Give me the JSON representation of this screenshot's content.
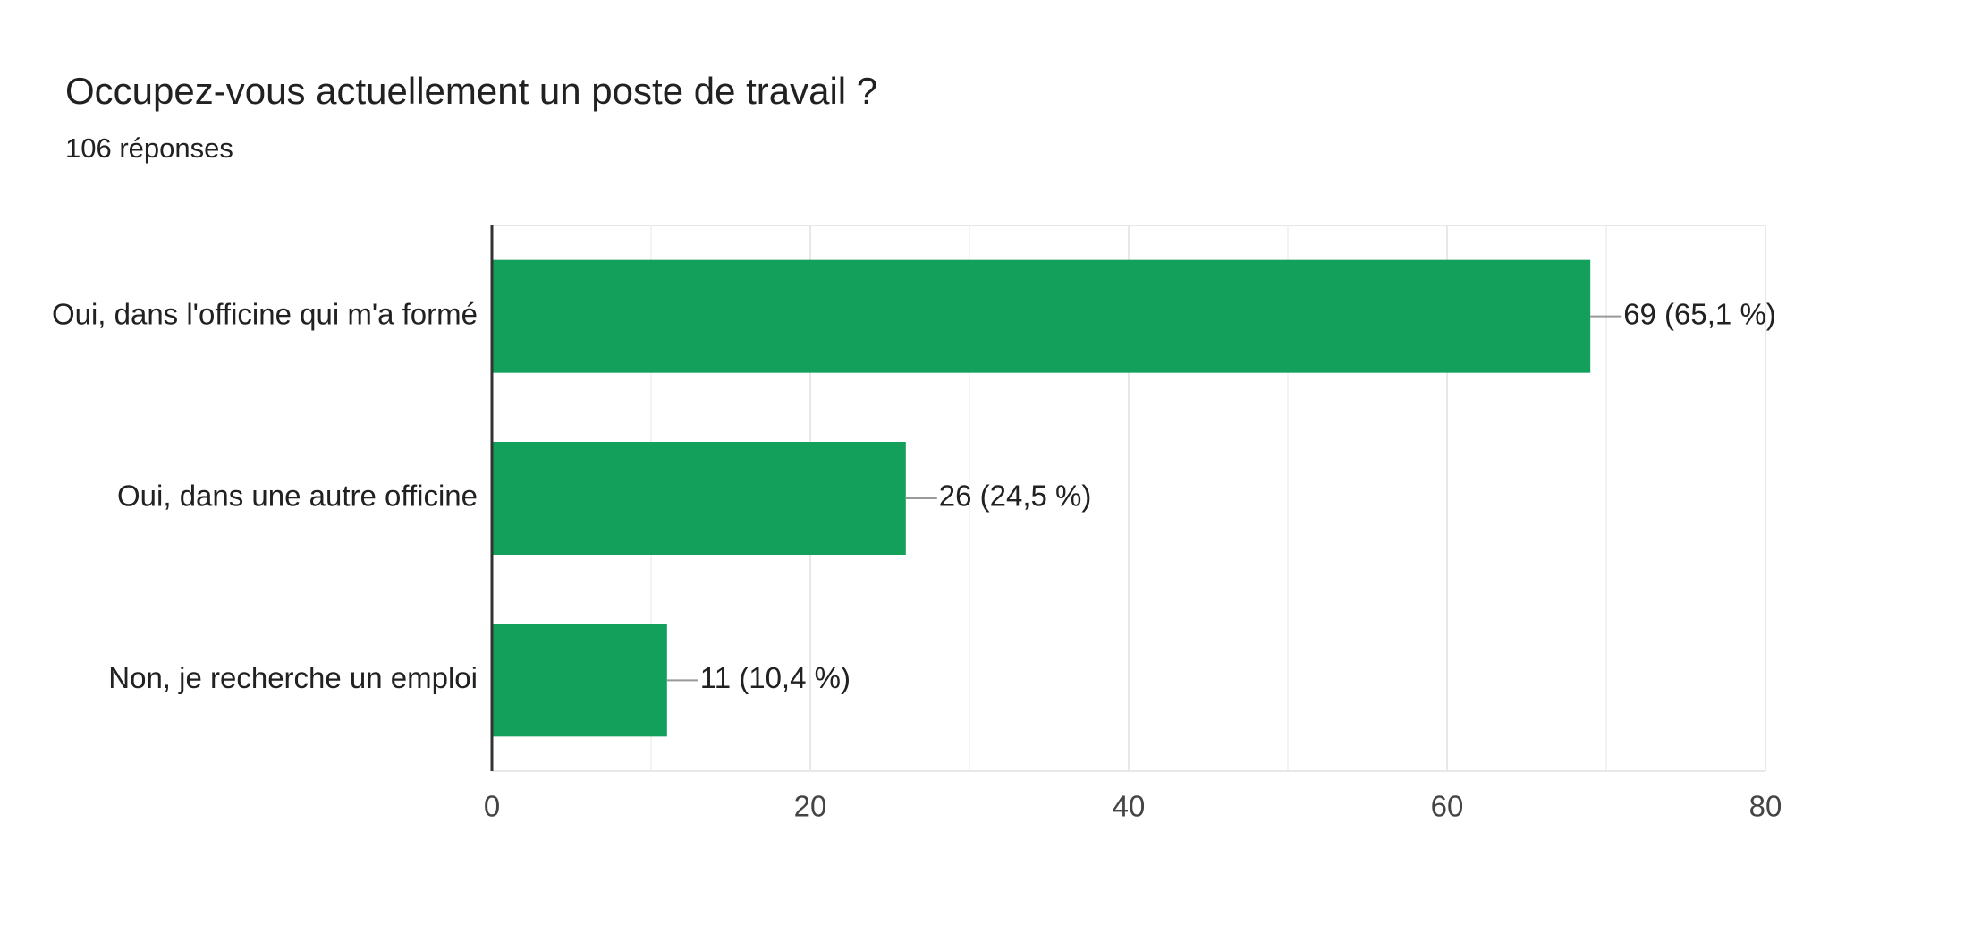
{
  "chart_data": {
    "type": "bar",
    "orientation": "horizontal",
    "title": "Occupez-vous actuellement un poste de travail ?",
    "subtitle": "106 réponses",
    "categories": [
      "Oui, dans l'officine qui m'a formé",
      "Oui, dans une autre officine",
      "Non, je recherche un emploi"
    ],
    "values": [
      69,
      26,
      11
    ],
    "value_labels": [
      "69 (65,1 %)",
      "26 (24,5 %)",
      "11 (10,4 %)"
    ],
    "color": "#12a05a",
    "xlim": [
      0,
      80
    ],
    "xticks": [
      0,
      20,
      40,
      60,
      80
    ],
    "grid": true
  }
}
